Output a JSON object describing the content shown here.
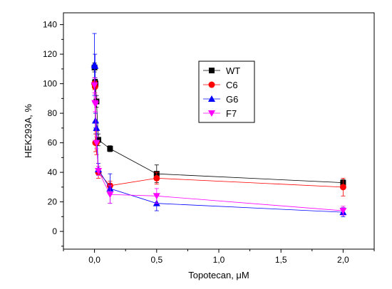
{
  "chart_data": {
    "type": "scatter",
    "title": "",
    "xlabel": "Topotecan, μM",
    "ylabel": "HEK293A, %",
    "xlim": [
      -0.25,
      2.25
    ],
    "ylim": [
      -12,
      148
    ],
    "x_ticks": [
      0.0,
      0.5,
      1.0,
      1.5,
      2.0
    ],
    "x_tick_labels": [
      "0,0",
      "0,5",
      "1,0",
      "1,5",
      "2,0"
    ],
    "y_ticks": [
      0,
      20,
      40,
      60,
      80,
      100,
      120,
      140
    ],
    "y_tick_labels": [
      "0",
      "20",
      "40",
      "60",
      "80",
      "100",
      "120",
      "140"
    ],
    "grid": false,
    "legend_position": "top-right",
    "series": [
      {
        "name": "WT",
        "color": "#000000",
        "marker": "square",
        "x": [
          0.0,
          0.004,
          0.008,
          0.016,
          0.031,
          0.125,
          0.5,
          2.0
        ],
        "y": [
          111,
          101,
          100,
          88,
          62,
          56,
          39,
          33
        ],
        "err": [
          3,
          3,
          3,
          4,
          4,
          2,
          6,
          2
        ]
      },
      {
        "name": "C6",
        "color": "#ff0000",
        "marker": "circle",
        "x": [
          0.0,
          0.004,
          0.008,
          0.016,
          0.031,
          0.125,
          0.5,
          2.0
        ],
        "y": [
          100,
          98,
          60,
          60,
          40,
          31,
          36,
          30
        ],
        "err": [
          4,
          4,
          6,
          8,
          4,
          3,
          4,
          6
        ]
      },
      {
        "name": "G6",
        "color": "#0000ff",
        "marker": "triangle-up",
        "x": [
          0.0,
          0.004,
          0.008,
          0.016,
          0.031,
          0.125,
          0.5,
          2.0
        ],
        "y": [
          113,
          112,
          75,
          70,
          42,
          29,
          19,
          13
        ],
        "err": [
          21,
          8,
          5,
          4,
          4,
          10,
          5,
          3
        ]
      },
      {
        "name": "F7",
        "color": "#ff00ff",
        "marker": "triangle-down",
        "x": [
          0.0,
          0.004,
          0.008,
          0.016,
          0.031,
          0.125,
          0.5,
          2.0
        ],
        "y": [
          99,
          87,
          86,
          60,
          41,
          25,
          24,
          14
        ],
        "err": [
          5,
          6,
          5,
          4,
          3,
          6,
          5,
          3
        ]
      }
    ]
  }
}
